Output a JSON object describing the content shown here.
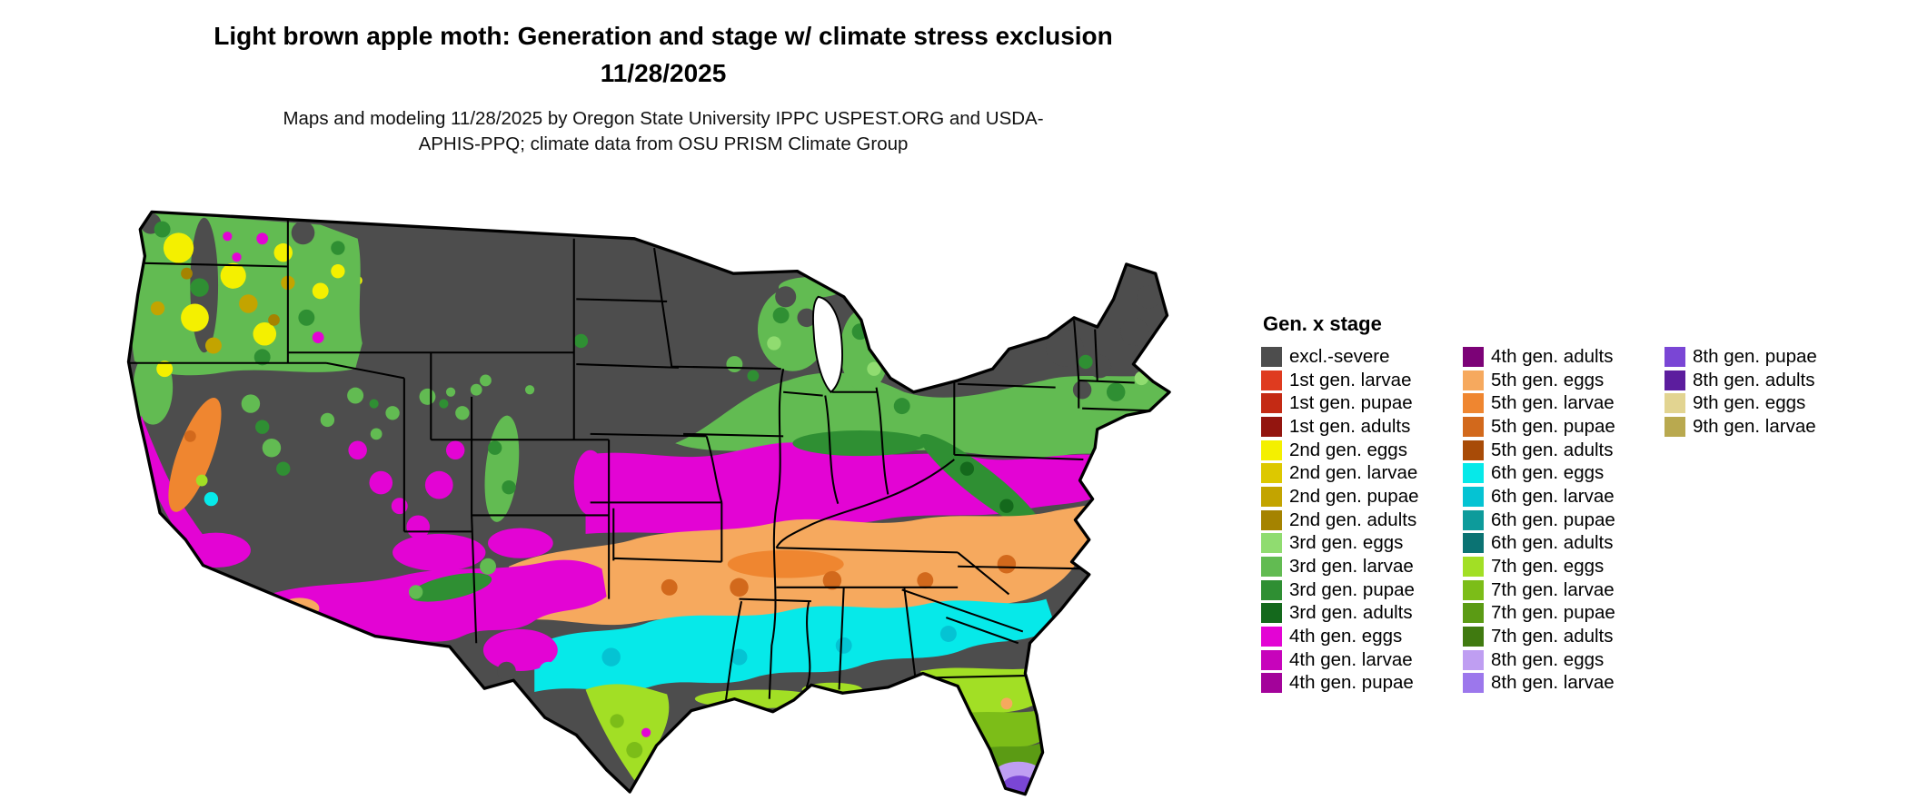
{
  "header": {
    "title": "Light brown apple moth: Generation and stage w/ climate stress exclusion 11/28/2025",
    "subtitle": "Maps and modeling 11/28/2025 by Oregon State University IPPC USPEST.ORG and USDA-APHIS-PPQ; climate data from OSU PRISM Climate Group"
  },
  "legend": {
    "title": "Gen. x stage",
    "columns": [
      [
        {
          "key": "excl_severe",
          "label": "excl.-severe",
          "color": "#4d4d4d"
        },
        {
          "key": "g1_larvae",
          "label": "1st gen. larvae",
          "color": "#df3b1f"
        },
        {
          "key": "g1_pupae",
          "label": "1st gen. pupae",
          "color": "#c42a14"
        },
        {
          "key": "g1_adults",
          "label": "1st gen. adults",
          "color": "#93150f"
        },
        {
          "key": "g2_eggs",
          "label": "2nd gen. eggs",
          "color": "#f4f000"
        },
        {
          "key": "g2_larvae",
          "label": "2nd gen. larvae",
          "color": "#ddc800"
        },
        {
          "key": "g2_pupae",
          "label": "2nd gen. pupae",
          "color": "#c3a400"
        },
        {
          "key": "g2_adults",
          "label": "2nd gen. adults",
          "color": "#a58300"
        },
        {
          "key": "g3_eggs",
          "label": "3rd gen. eggs",
          "color": "#90dc70"
        },
        {
          "key": "g3_larvae",
          "label": "3rd gen. larvae",
          "color": "#62bb52"
        },
        {
          "key": "g3_pupae",
          "label": "3rd gen. pupae",
          "color": "#2f8f33"
        },
        {
          "key": "g3_adults",
          "label": "3rd gen. adults",
          "color": "#14691c"
        },
        {
          "key": "g4_eggs",
          "label": "4th gen. eggs",
          "color": "#e304d4"
        },
        {
          "key": "g4_larvae",
          "label": "4th gen. larvae",
          "color": "#c704bb"
        },
        {
          "key": "g4_pupae",
          "label": "4th gen. pupae",
          "color": "#a3039a"
        }
      ],
      [
        {
          "key": "g4_adults",
          "label": "4th gen. adults",
          "color": "#7c0277"
        },
        {
          "key": "g5_eggs",
          "label": "5th gen. eggs",
          "color": "#f6a95e"
        },
        {
          "key": "g5_larvae",
          "label": "5th gen. larvae",
          "color": "#ef8630"
        },
        {
          "key": "g5_pupae",
          "label": "5th gen. pupae",
          "color": "#d2691c"
        },
        {
          "key": "g5_adults",
          "label": "5th gen. adults",
          "color": "#a84b07"
        },
        {
          "key": "g6_eggs",
          "label": "6th gen. eggs",
          "color": "#06e9e9"
        },
        {
          "key": "g6_larvae",
          "label": "6th gen. larvae",
          "color": "#05c3d3"
        },
        {
          "key": "g6_pupae",
          "label": "6th gen. pupae",
          "color": "#0d9b9b"
        },
        {
          "key": "g6_adults",
          "label": "6th gen. adults",
          "color": "#0b7373"
        },
        {
          "key": "g7_eggs",
          "label": "7th gen. eggs",
          "color": "#a2df25"
        },
        {
          "key": "g7_larvae",
          "label": "7th gen. larvae",
          "color": "#7cbd18"
        },
        {
          "key": "g7_pupae",
          "label": "7th gen. pupae",
          "color": "#5b9b14"
        },
        {
          "key": "g7_adults",
          "label": "7th gen. adults",
          "color": "#407a10"
        },
        {
          "key": "g8_eggs",
          "label": "8th gen. eggs",
          "color": "#bf9ef2"
        },
        {
          "key": "g8_larvae",
          "label": "8th gen. larvae",
          "color": "#9c77ec"
        }
      ],
      [
        {
          "key": "g8_pupae",
          "label": "8th gen. pupae",
          "color": "#7a46d5"
        },
        {
          "key": "g8_adults",
          "label": "8th gen. adults",
          "color": "#5c1d9e"
        },
        {
          "key": "g9_eggs",
          "label": "9th gen. eggs",
          "color": "#e2d491"
        },
        {
          "key": "g9_larvae",
          "label": "9th gen. larvae",
          "color": "#b9a94f"
        }
      ]
    ]
  }
}
